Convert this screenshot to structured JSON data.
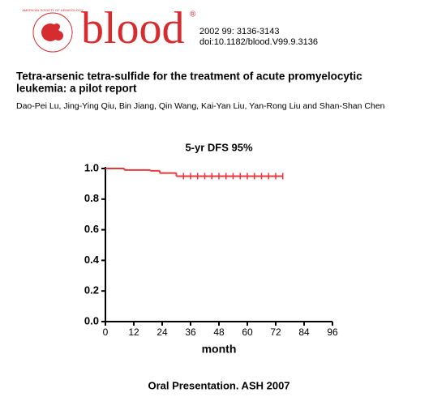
{
  "header": {
    "logo": "blood",
    "logo_mark": "®",
    "society": "AMERICAN SOCIETY OF HEMATOLOGY",
    "citation": "2002 99: 3136-3143",
    "doi": "doi:10.1182/blood.V99.9.3136"
  },
  "article": {
    "title_line1": "Tetra-arsenic tetra-sulfide for the treatment of acute promyelocytic",
    "title_line2": "leukemia: a pilot report",
    "authors": "Dao-Pei Lu, Jing-Ying Qiu, Bin Jiang, Qin Wang, Kai-Yan Liu, Yan-Rong Liu and Shan-Shan Chen"
  },
  "chart_data": {
    "type": "step",
    "title": "5-yr DFS 95%",
    "x_label": "month",
    "color": "#e8383d",
    "x": [
      0,
      8,
      19,
      23,
      30,
      75
    ],
    "values": [
      1.0,
      0.99,
      0.985,
      0.97,
      0.95,
      0.95
    ],
    "censored_x": [
      33,
      36,
      39,
      42,
      45,
      48,
      51,
      54,
      57,
      60,
      63,
      66,
      69,
      72,
      75
    ],
    "xlim": [
      0,
      96
    ],
    "xticks": [
      0,
      12,
      24,
      36,
      48,
      60,
      72,
      84,
      96
    ],
    "ylim": [
      0,
      1
    ],
    "yticks": [
      {
        "value": 0,
        "label": "0.0"
      },
      0.2,
      0.4,
      0.6,
      0.8,
      {
        "value": 1,
        "label": "1.0"
      }
    ]
  },
  "footer": "Oral Presentation. ASH 2007"
}
